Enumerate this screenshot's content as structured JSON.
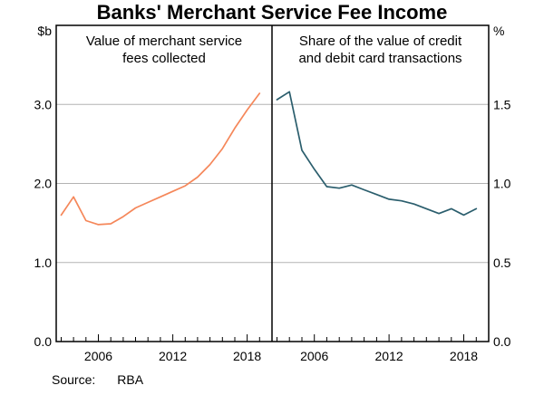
{
  "title": "Banks' Merchant Service Fee Income",
  "panels": {
    "left": {
      "title_line1": "Value of merchant service",
      "title_line2": "fees collected",
      "unit": "$b"
    },
    "right": {
      "title_line1": "Share of the value of credit",
      "title_line2": "and debit card transactions",
      "unit": "%"
    }
  },
  "source": {
    "label": "Source:",
    "value": "RBA"
  },
  "colors": {
    "left_line": "#f5875a",
    "right_line": "#2b5e6d",
    "gridline": "#b3b3b3",
    "frame": "#000000"
  },
  "chart_data": [
    {
      "type": "line",
      "panel": "left",
      "title": "Value of merchant service fees collected",
      "ylabel": "$b",
      "y_axis_side": "left",
      "xlim": [
        2002.6,
        2020.0
      ],
      "ylim": [
        0,
        4
      ],
      "grid": true,
      "x": [
        2003,
        2004,
        2005,
        2006,
        2007,
        2008,
        2009,
        2010,
        2011,
        2012,
        2013,
        2014,
        2015,
        2016,
        2017,
        2018,
        2019
      ],
      "values": [
        1.6,
        1.83,
        1.53,
        1.48,
        1.49,
        1.58,
        1.69,
        1.76,
        1.83,
        1.9,
        1.97,
        2.08,
        2.24,
        2.44,
        2.7,
        2.93,
        3.14
      ],
      "yticks": [
        {
          "value": 0,
          "label": "0.0"
        },
        {
          "value": 1,
          "label": "1.0"
        },
        {
          "value": 2,
          "label": "2.0"
        },
        {
          "value": 3,
          "label": "3.0"
        }
      ],
      "xticks": [
        2006,
        2012,
        2018
      ],
      "series_color": "#f5875a"
    },
    {
      "type": "line",
      "panel": "right",
      "title": "Share of the value of credit and debit card transactions",
      "ylabel": "%",
      "y_axis_side": "right",
      "xlim": [
        2002.6,
        2020.0
      ],
      "ylim": [
        0,
        2
      ],
      "grid": true,
      "x": [
        2003,
        2004,
        2005,
        2006,
        2007,
        2008,
        2009,
        2010,
        2011,
        2012,
        2013,
        2014,
        2015,
        2016,
        2017,
        2018,
        2019
      ],
      "values": [
        1.53,
        1.58,
        1.21,
        1.09,
        0.98,
        0.97,
        0.99,
        0.96,
        0.93,
        0.9,
        0.89,
        0.87,
        0.84,
        0.81,
        0.84,
        0.8,
        0.84
      ],
      "yticks": [
        {
          "value": 0.0,
          "label": "0.0"
        },
        {
          "value": 0.5,
          "label": "0.5"
        },
        {
          "value": 1.0,
          "label": "1.0"
        },
        {
          "value": 1.5,
          "label": "1.5"
        }
      ],
      "xticks": [
        2006,
        2012,
        2018
      ],
      "series_color": "#2b5e6d"
    }
  ]
}
